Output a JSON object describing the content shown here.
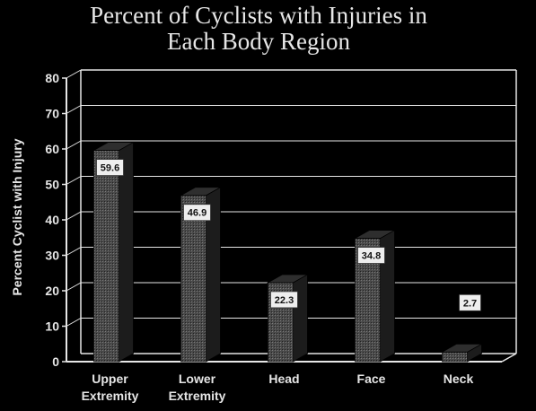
{
  "chart_data": {
    "type": "bar",
    "title_lines": [
      "Percent of Cyclists with Injuries in",
      "Each Body Region"
    ],
    "ylabel": "Percent Cyclist with Injury",
    "xlabel": "",
    "categories": [
      [
        "Upper",
        "Extremity"
      ],
      [
        "Lower",
        "Extremity"
      ],
      [
        "Head"
      ],
      [
        "Face"
      ],
      [
        "Neck"
      ]
    ],
    "values": [
      59.6,
      46.9,
      22.3,
      34.8,
      2.7
    ],
    "data_labels": [
      "59.6",
      "46.9",
      "22.3",
      "34.8",
      "2.7"
    ],
    "ylim": [
      0,
      80
    ],
    "yticks": [
      0,
      10,
      20,
      30,
      40,
      50,
      60,
      70,
      80
    ],
    "grid": true,
    "style": "3d-bar",
    "colors": {
      "background": "#000000",
      "axis": "#e6e6e6",
      "bar_front": "#555555",
      "bar_side": "#1c1c1c",
      "bar_top": "#2e2e2e",
      "label_box": "#eeeeee"
    }
  }
}
